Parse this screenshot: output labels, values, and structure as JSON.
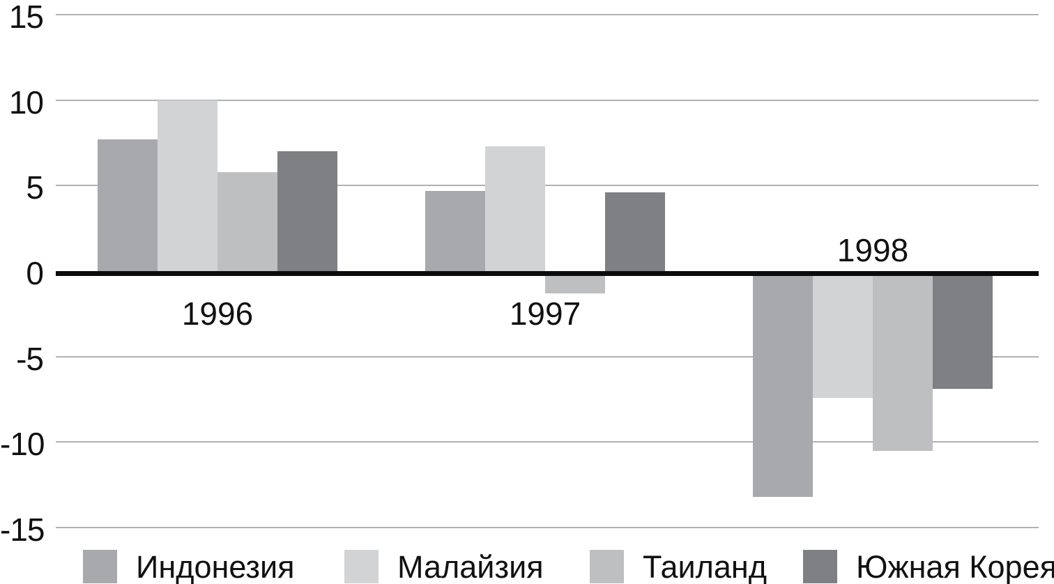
{
  "chart_data": {
    "type": "bar",
    "title": "",
    "xlabel": "",
    "ylabel": "",
    "categories": [
      "1996",
      "1997",
      "1998"
    ],
    "series": [
      {
        "name": "Индонезия",
        "color": "#a8a9ac",
        "values": [
          7.7,
          4.7,
          -13.2
        ]
      },
      {
        "name": "Малайзия",
        "color": "#d2d3d5",
        "values": [
          10.0,
          7.3,
          -7.4
        ]
      },
      {
        "name": "Таиланд",
        "color": "#bebfc1",
        "values": [
          5.8,
          -1.3,
          -10.5
        ]
      },
      {
        "name": "Южная Корея",
        "color": "#7f8084",
        "values": [
          7.0,
          4.6,
          -6.9
        ]
      }
    ],
    "ylim": [
      -15,
      15
    ],
    "yticks": [
      15,
      10,
      5,
      0,
      -5,
      -10,
      -15
    ],
    "grid": true,
    "legend_position": "bottom",
    "gridline_color": "#b1b1b3",
    "zero_axis_color": "#0c0c0c"
  }
}
